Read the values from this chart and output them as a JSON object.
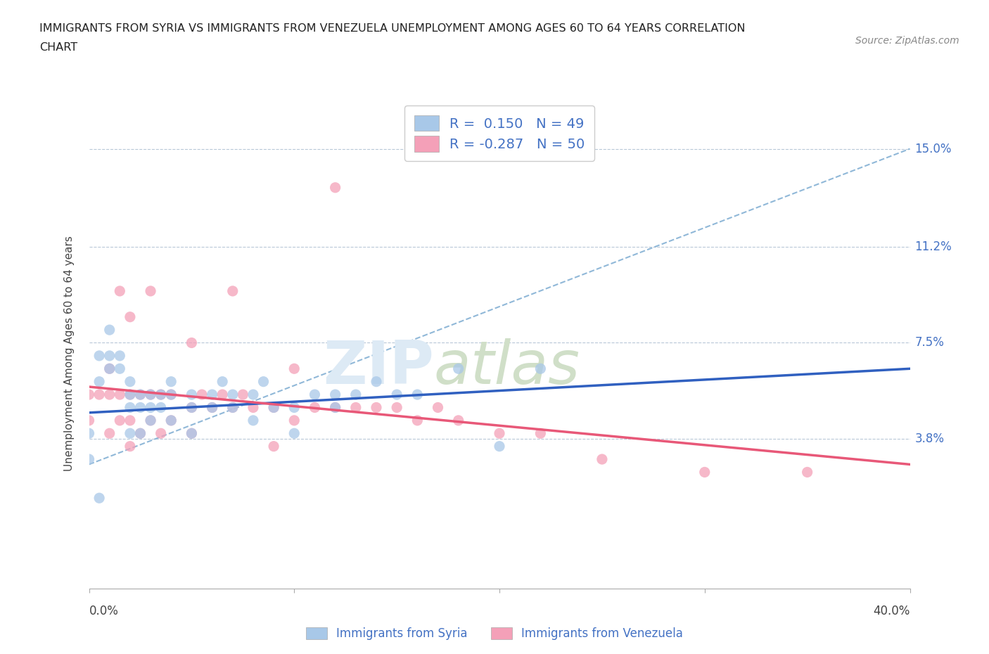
{
  "title_line1": "IMMIGRANTS FROM SYRIA VS IMMIGRANTS FROM VENEZUELA UNEMPLOYMENT AMONG AGES 60 TO 64 YEARS CORRELATION",
  "title_line2": "CHART",
  "source": "Source: ZipAtlas.com",
  "ylabel": "Unemployment Among Ages 60 to 64 years",
  "yticks": [
    0.0,
    0.038,
    0.075,
    0.112,
    0.15
  ],
  "ytick_labels": [
    "",
    "3.8%",
    "7.5%",
    "11.2%",
    "15.0%"
  ],
  "xmin": 0.0,
  "xmax": 0.4,
  "ymin": -0.02,
  "ymax": 0.162,
  "syria_color": "#a8c8e8",
  "venezuela_color": "#f4a0b8",
  "syria_line_color": "#3060c0",
  "venezuela_line_color": "#e85878",
  "dash_line_color": "#90b8d8",
  "R_syria": 0.15,
  "N_syria": 49,
  "R_venezuela": -0.287,
  "N_venezuela": 50,
  "syria_scatter_x": [
    0.0,
    0.0,
    0.005,
    0.005,
    0.01,
    0.01,
    0.01,
    0.015,
    0.015,
    0.02,
    0.02,
    0.02,
    0.02,
    0.025,
    0.025,
    0.025,
    0.03,
    0.03,
    0.03,
    0.035,
    0.035,
    0.04,
    0.04,
    0.04,
    0.05,
    0.05,
    0.05,
    0.06,
    0.06,
    0.065,
    0.07,
    0.07,
    0.08,
    0.08,
    0.085,
    0.09,
    0.1,
    0.1,
    0.11,
    0.12,
    0.12,
    0.13,
    0.14,
    0.15,
    0.16,
    0.18,
    0.2,
    0.22,
    0.005
  ],
  "syria_scatter_y": [
    0.04,
    0.03,
    0.07,
    0.06,
    0.08,
    0.07,
    0.065,
    0.07,
    0.065,
    0.06,
    0.055,
    0.05,
    0.04,
    0.055,
    0.05,
    0.04,
    0.055,
    0.05,
    0.045,
    0.055,
    0.05,
    0.06,
    0.055,
    0.045,
    0.055,
    0.05,
    0.04,
    0.055,
    0.05,
    0.06,
    0.055,
    0.05,
    0.055,
    0.045,
    0.06,
    0.05,
    0.05,
    0.04,
    0.055,
    0.055,
    0.05,
    0.055,
    0.06,
    0.055,
    0.055,
    0.065,
    0.035,
    0.065,
    0.015
  ],
  "venezuela_scatter_x": [
    0.0,
    0.0,
    0.005,
    0.01,
    0.01,
    0.01,
    0.015,
    0.015,
    0.02,
    0.02,
    0.02,
    0.025,
    0.025,
    0.03,
    0.03,
    0.035,
    0.035,
    0.04,
    0.04,
    0.05,
    0.05,
    0.055,
    0.06,
    0.065,
    0.07,
    0.075,
    0.08,
    0.09,
    0.1,
    0.11,
    0.12,
    0.13,
    0.14,
    0.15,
    0.16,
    0.17,
    0.18,
    0.2,
    0.22,
    0.25,
    0.3,
    0.35,
    0.015,
    0.02,
    0.03,
    0.05,
    0.07,
    0.09,
    0.1,
    0.12
  ],
  "venezuela_scatter_y": [
    0.055,
    0.045,
    0.055,
    0.065,
    0.055,
    0.04,
    0.055,
    0.045,
    0.055,
    0.045,
    0.035,
    0.055,
    0.04,
    0.055,
    0.045,
    0.055,
    0.04,
    0.055,
    0.045,
    0.05,
    0.04,
    0.055,
    0.05,
    0.055,
    0.05,
    0.055,
    0.05,
    0.05,
    0.045,
    0.05,
    0.05,
    0.05,
    0.05,
    0.05,
    0.045,
    0.05,
    0.045,
    0.04,
    0.04,
    0.03,
    0.025,
    0.025,
    0.095,
    0.085,
    0.095,
    0.075,
    0.095,
    0.035,
    0.065,
    0.135
  ],
  "syria_trend": [
    0.048,
    0.065
  ],
  "venezuela_trend": [
    0.058,
    0.028
  ],
  "dash_trend": [
    0.028,
    0.15
  ]
}
